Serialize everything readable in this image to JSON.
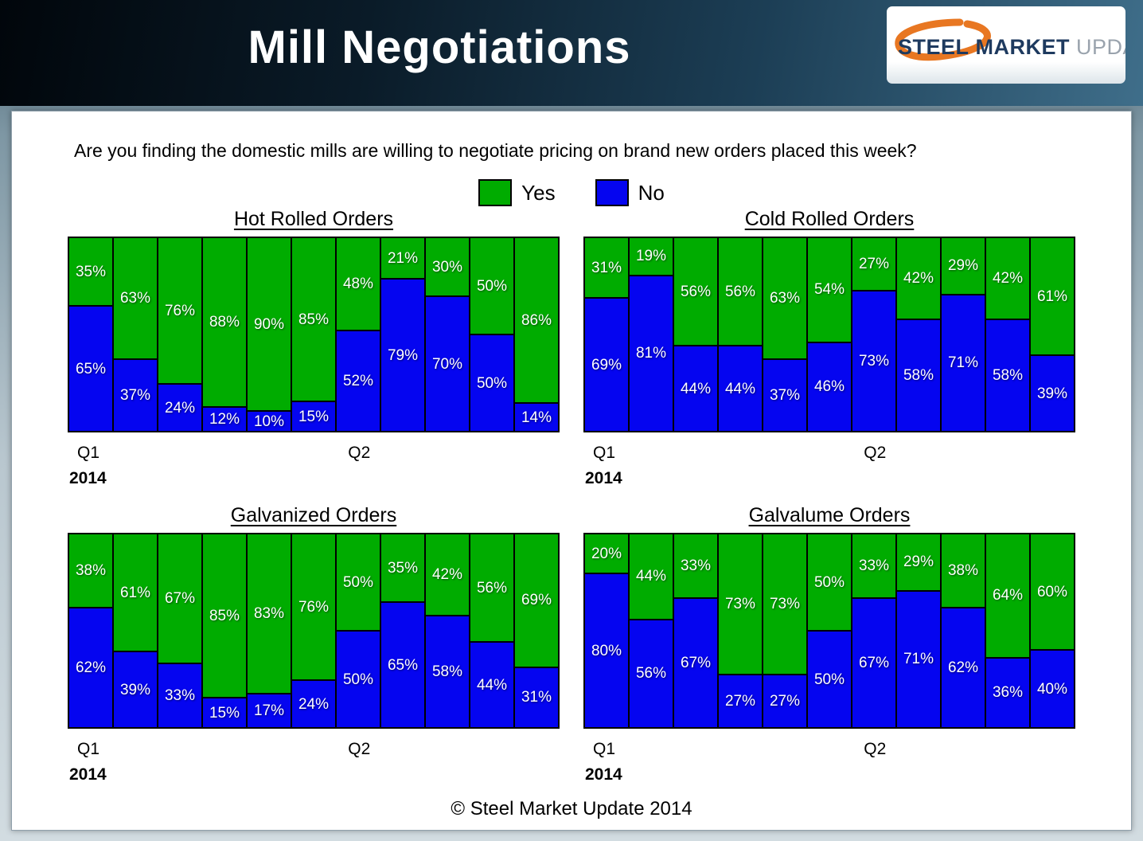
{
  "header": {
    "title": "Mill Negotiations",
    "logo": {
      "steel": "STEEL",
      "market": "MARKET",
      "update": "UPDATE",
      "swoosh_color": "#e87722"
    }
  },
  "question": "Are you finding the domestic mills are willing to negotiate pricing on brand new orders placed this week?",
  "legend": {
    "yes": "Yes",
    "no": "No"
  },
  "colors": {
    "yes": "#00AC00",
    "no": "#0505F0"
  },
  "axis": {
    "q1": "Q1",
    "q2": "Q2",
    "year": "2014"
  },
  "footer": "© Steel Market Update 2014",
  "chart_data": [
    {
      "type": "bar",
      "stacked": true,
      "title": "Hot Rolled Orders",
      "slug": "hot-rolled-orders",
      "unit": "%",
      "ylim": [
        0,
        100
      ],
      "series": [
        {
          "name": "Yes",
          "color_key": "yes",
          "values": [
            35,
            63,
            76,
            88,
            90,
            85,
            48,
            21,
            30,
            50,
            86
          ]
        },
        {
          "name": "No",
          "color_key": "no",
          "values": [
            65,
            37,
            24,
            12,
            10,
            15,
            52,
            79,
            70,
            50,
            14
          ]
        }
      ]
    },
    {
      "type": "bar",
      "stacked": true,
      "title": "Cold Rolled Orders",
      "slug": "cold-rolled-orders",
      "unit": "%",
      "ylim": [
        0,
        100
      ],
      "series": [
        {
          "name": "Yes",
          "color_key": "yes",
          "values": [
            31,
            19,
            56,
            56,
            63,
            54,
            27,
            42,
            29,
            42,
            61
          ]
        },
        {
          "name": "No",
          "color_key": "no",
          "values": [
            69,
            81,
            44,
            44,
            37,
            46,
            73,
            58,
            71,
            58,
            39
          ]
        }
      ]
    },
    {
      "type": "bar",
      "stacked": true,
      "title": "Galvanized Orders",
      "slug": "galvanized-orders",
      "unit": "%",
      "ylim": [
        0,
        100
      ],
      "series": [
        {
          "name": "Yes",
          "color_key": "yes",
          "values": [
            38,
            61,
            67,
            85,
            83,
            76,
            50,
            35,
            42,
            56,
            69
          ]
        },
        {
          "name": "No",
          "color_key": "no",
          "values": [
            62,
            39,
            33,
            15,
            17,
            24,
            50,
            65,
            58,
            44,
            31
          ]
        }
      ]
    },
    {
      "type": "bar",
      "stacked": true,
      "title": "Galvalume Orders",
      "slug": "galvalume-orders",
      "unit": "%",
      "ylim": [
        0,
        100
      ],
      "series": [
        {
          "name": "Yes",
          "color_key": "yes",
          "values": [
            20,
            44,
            33,
            73,
            73,
            50,
            33,
            29,
            38,
            64,
            60
          ]
        },
        {
          "name": "No",
          "color_key": "no",
          "values": [
            80,
            56,
            67,
            27,
            27,
            50,
            67,
            71,
            62,
            36,
            40
          ]
        }
      ]
    }
  ]
}
